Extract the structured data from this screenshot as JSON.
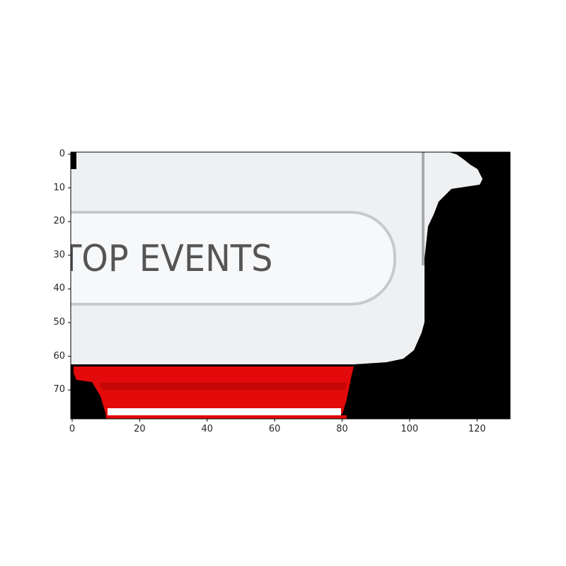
{
  "dropdown": {
    "label": "TOP EVENTS",
    "icon": "chevron-down-icon",
    "chevron_color": "#5b7fa8"
  },
  "colors": {
    "panel": "#eff0f2",
    "pill_fill": "#f7f8fa",
    "pill_border": "#c8c9cc",
    "accent_red": "#e20a0a",
    "text": "#555555"
  },
  "axes": {
    "y_ticks": [
      "0",
      "10",
      "20",
      "30",
      "40",
      "50",
      "60",
      "70"
    ],
    "x_ticks": [
      "0",
      "20",
      "40",
      "60",
      "80",
      "100",
      "120"
    ]
  }
}
